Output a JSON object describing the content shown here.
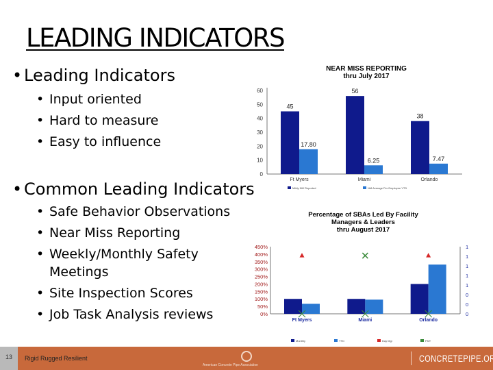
{
  "slide": {
    "title": "LEADING INDICATORS",
    "bullets": {
      "b1": "Leading Indicators",
      "b1_subs": [
        "Input oriented",
        "Hard to measure",
        "Easy to influence"
      ],
      "b2": "Common Leading Indicators",
      "b2_subs": [
        "Safe Behavior Observations",
        "Near Miss Reporting",
        "Weekly/Monthly Safety",
        "Site Inspection Scores",
        "Job Task Analysis reviews"
      ],
      "b2_sub3_cont": "Meetings"
    }
  },
  "chart_data": [
    {
      "type": "bar",
      "title": "NEAR MISS REPORTING thru July 2017",
      "title_lines": [
        "NEAR MISS REPORTING",
        "thru July 2017"
      ],
      "categories": [
        "Ft Myers",
        "Miami",
        "Orlando"
      ],
      "series": [
        {
          "name": "Mthly NM Reported",
          "values": [
            45,
            56,
            38
          ],
          "color": "#0f1a8c"
        },
        {
          "name": "NM Average Per Employee YTD",
          "values": [
            17.8,
            6.25,
            7.47
          ],
          "color": "#2a78d2"
        }
      ],
      "data_labels": [
        [
          "45",
          "56",
          "38"
        ],
        [
          "17.80",
          "6.25",
          "7.47"
        ]
      ],
      "yticks": [
        "0",
        "10",
        "20",
        "30",
        "40",
        "50",
        "60"
      ],
      "ylim": [
        0,
        60
      ],
      "legend_position": "bottom"
    },
    {
      "type": "bar",
      "title": "Percentage of SBAs Led By Facility Managers & Leaders thru August 2017",
      "title_lines": [
        "Percentage of SBAs Led By Facility",
        "Managers & Leaders",
        "thru August 2017"
      ],
      "categories": [
        "Ft Myers",
        "Miami",
        "Orlando"
      ],
      "series": [
        {
          "name": "Monthly",
          "values": [
            100,
            100,
            200
          ],
          "color": "#0f1a8c"
        },
        {
          "name": "YTD",
          "values": [
            67,
            95,
            330
          ],
          "color": "#2a78d2"
        },
        {
          "name": "Day Mgr",
          "markers": [
            390,
            0,
            390
          ],
          "color": "#d62828"
        },
        {
          "name": "FMT",
          "markers": [
            0,
            390,
            0
          ],
          "color": "#3a8a3a"
        }
      ],
      "yticks_left": [
        "0%",
        "50%",
        "100%",
        "150%",
        "200%",
        "250%",
        "300%",
        "350%",
        "400%",
        "450%"
      ],
      "yticks_right": [
        "0",
        "0",
        "0",
        "1",
        "1",
        "1",
        "1",
        "1"
      ],
      "ylim": [
        0,
        450
      ],
      "legend_position": "bottom"
    }
  ],
  "footer": {
    "page_number": "13",
    "tagline": "Rigid Rugged Resilient",
    "org": "American Concrete Pipe Association",
    "site": "CONCRETEPIPE.ORG"
  }
}
